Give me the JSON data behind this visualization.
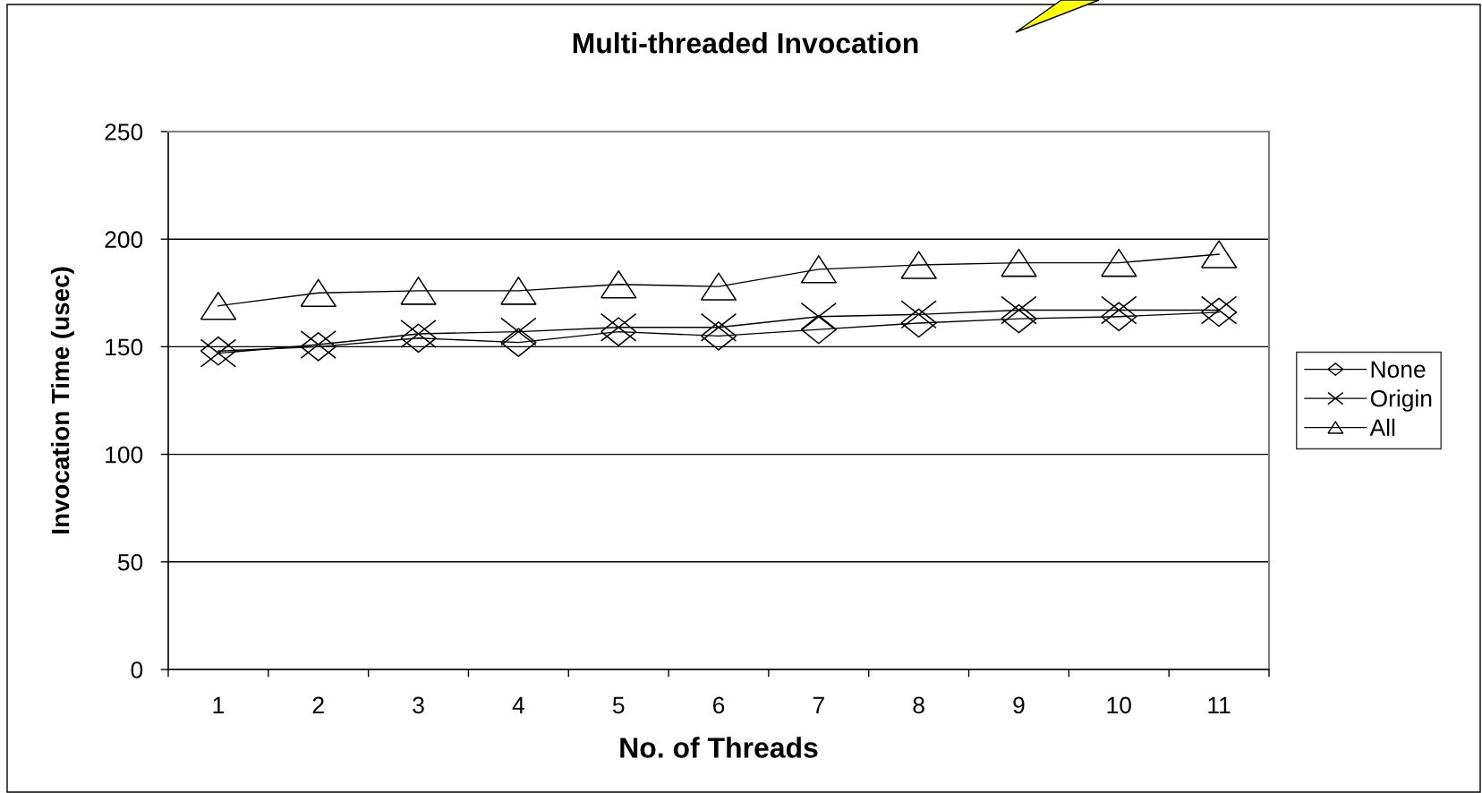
{
  "chart_data": {
    "type": "line",
    "title": "Multi-threaded Invocation",
    "xlabel": "No. of Threads",
    "ylabel": "Invocation Time (usec)",
    "categories": [
      "1",
      "2",
      "3",
      "4",
      "5",
      "6",
      "7",
      "8",
      "9",
      "10",
      "11"
    ],
    "series": [
      {
        "name": "None",
        "color": "#000000",
        "marker": "diamond",
        "values": [
          148,
          150,
          154,
          152,
          157,
          155,
          158,
          161,
          163,
          164,
          166
        ]
      },
      {
        "name": "Origin",
        "color": "#000000",
        "marker": "cross",
        "values": [
          147,
          151,
          156,
          157,
          159,
          159,
          164,
          165,
          167,
          167,
          167
        ]
      },
      {
        "name": "All",
        "color": "#000000",
        "marker": "triangle",
        "values": [
          169,
          175,
          176,
          176,
          179,
          178,
          186,
          188,
          189,
          189,
          193
        ]
      }
    ],
    "ylim": [
      0,
      250
    ],
    "yticks": [
      0,
      50,
      100,
      150,
      200,
      250
    ],
    "grid": "y",
    "legend": "right",
    "line_style": "solid"
  }
}
